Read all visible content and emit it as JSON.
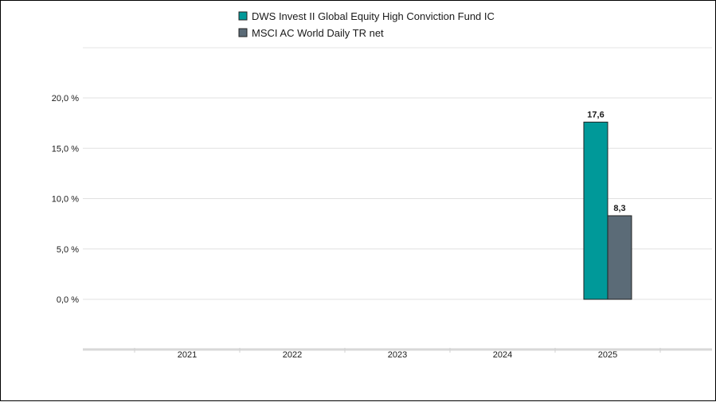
{
  "chart_data": {
    "type": "bar",
    "categories": [
      "2021",
      "2022",
      "2023",
      "2024",
      "2025"
    ],
    "series": [
      {
        "name": "DWS Invest II Global Equity High Conviction Fund IC",
        "color": "#009999",
        "values": [
          null,
          null,
          null,
          null,
          17.6
        ],
        "labels": [
          null,
          null,
          null,
          null,
          "17,6"
        ]
      },
      {
        "name": "MSCI AC World Daily TR net",
        "color": "#5b6b77",
        "values": [
          null,
          null,
          null,
          null,
          8.3
        ],
        "labels": [
          null,
          null,
          null,
          null,
          "8,3"
        ]
      }
    ],
    "yticks": [
      0,
      5,
      10,
      15,
      20
    ],
    "ytick_labels": [
      "0,0 %",
      "5,0 %",
      "10,0 %",
      "15,0 %",
      "20,0 %"
    ],
    "ylim": [
      -5,
      25
    ],
    "grid": true,
    "legend_position": "top-center"
  }
}
